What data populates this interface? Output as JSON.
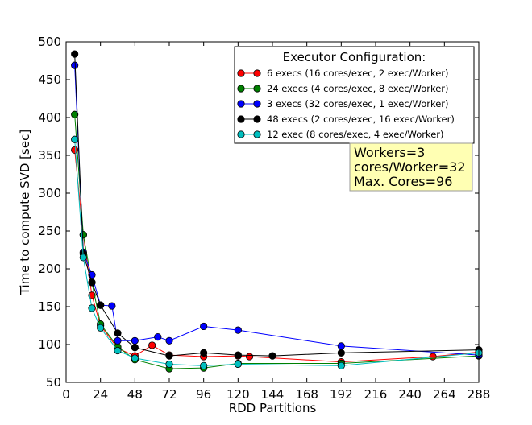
{
  "chart_data": {
    "type": "line",
    "xlabel": "RDD Partitions",
    "ylabel": "Time to compute SVD [sec]",
    "xlim": [
      0,
      288
    ],
    "ylim": [
      50,
      500
    ],
    "xticks": [
      0,
      24,
      48,
      72,
      96,
      120,
      144,
      168,
      192,
      216,
      240,
      264,
      288
    ],
    "yticks": [
      50,
      100,
      150,
      200,
      250,
      300,
      350,
      400,
      450,
      500
    ],
    "grid": false,
    "legend": {
      "title": "Executor Configuration:",
      "position": "top-right"
    },
    "annotation": {
      "lines": [
        "Workers=3",
        "cores/Worker=32",
        "Max. Cores=96"
      ],
      "background": "#ffffb3"
    },
    "series": [
      {
        "name": "6 execs (16 cores/exec, 2 exec/Worker)",
        "color": "#ff0000",
        "x": [
          6,
          12,
          18,
          24,
          36,
          48,
          60,
          72,
          96,
          120,
          128,
          192,
          256,
          288
        ],
        "y": [
          357,
          245,
          165,
          125,
          95,
          85,
          99,
          86,
          84,
          85,
          84,
          77,
          84,
          90
        ]
      },
      {
        "name": "24 execs (4 cores/exec, 8 exec/Worker)",
        "color": "#008000",
        "x": [
          6,
          12,
          18,
          24,
          36,
          48,
          72,
          96,
          120,
          192,
          288
        ],
        "y": [
          404,
          245,
          182,
          127,
          97,
          80,
          68,
          69,
          75,
          75,
          85
        ]
      },
      {
        "name": "3 execs (32 cores/exec, 1 exec/Worker)",
        "color": "#0000ff",
        "x": [
          6,
          12,
          18,
          24,
          32,
          36,
          48,
          64,
          72,
          96,
          120,
          192,
          288
        ],
        "y": [
          469,
          222,
          192,
          152,
          151,
          105,
          105,
          110,
          105,
          124,
          119,
          98,
          86
        ]
      },
      {
        "name": "48 execs (2 cores/exec, 16 exec/Worker)",
        "color": "#000000",
        "x": [
          6,
          12,
          18,
          24,
          36,
          48,
          72,
          96,
          120,
          144,
          192,
          288
        ],
        "y": [
          484,
          220,
          182,
          152,
          115,
          96,
          85,
          89,
          86,
          85,
          89,
          93
        ]
      },
      {
        "name": "12 exec (8 cores/exec, 4 exec/Worker)",
        "color": "#00bfbf",
        "x": [
          6,
          12,
          18,
          24,
          36,
          48,
          72,
          96,
          120,
          192,
          288
        ],
        "y": [
          371,
          215,
          148,
          122,
          92,
          82,
          74,
          72,
          74,
          72,
          89
        ]
      }
    ]
  }
}
